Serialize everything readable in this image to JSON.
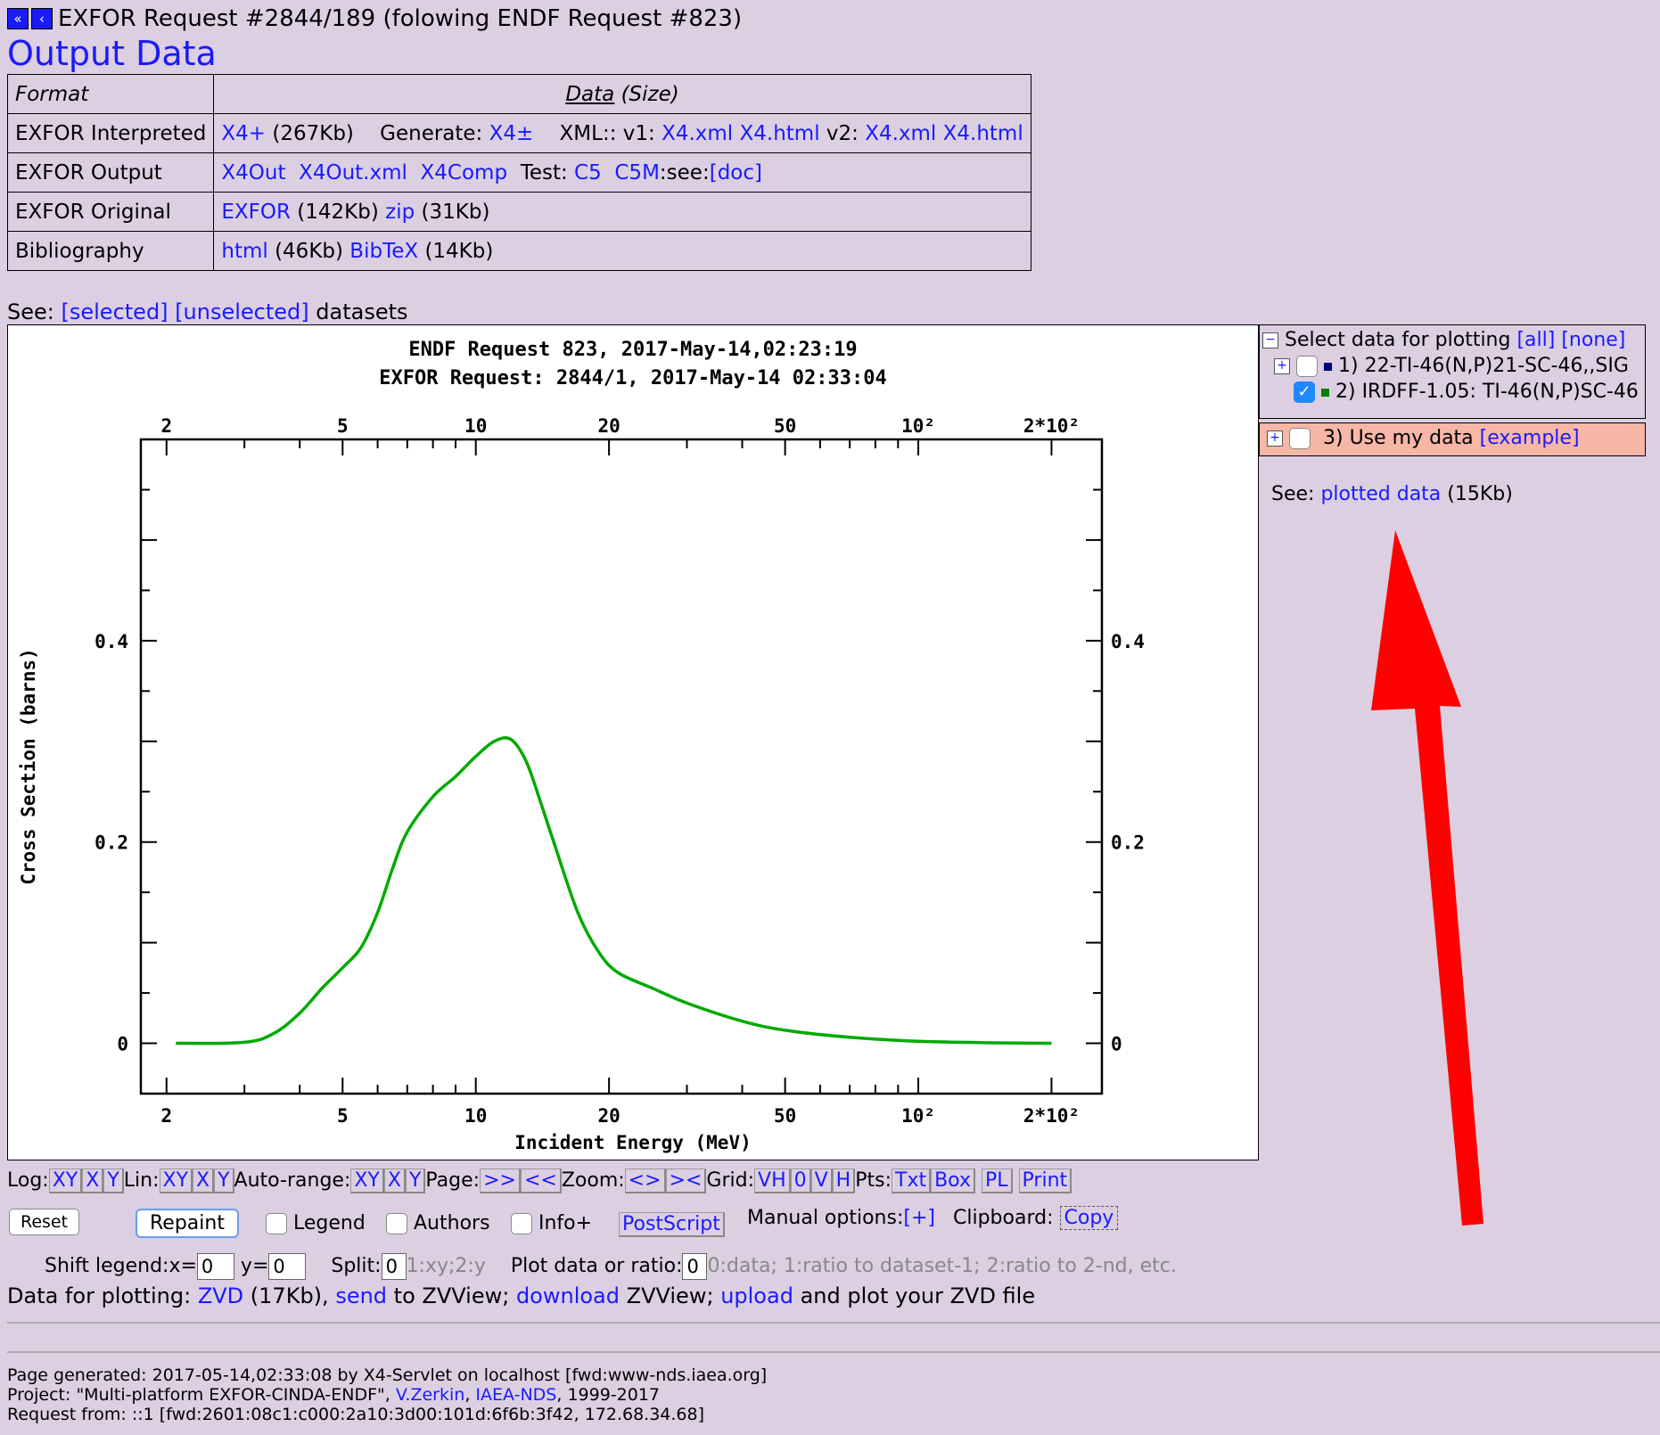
{
  "header": {
    "nav_icon_1": "double-left-arrow",
    "nav_icon_2": "left-arrow",
    "title": "EXFOR Request #2844/189 (folowing ENDF Request #823)"
  },
  "page_title": "Output Data",
  "table": {
    "col1_header": "Format",
    "col2_header_data": "Data",
    "col2_header_size": "(Size)",
    "rows": [
      {
        "label": "EXFOR Interpreted"
      },
      {
        "label": "EXFOR Output"
      },
      {
        "label": "EXFOR Original"
      },
      {
        "label": "Bibliography"
      }
    ],
    "interp": {
      "x4p": "X4+",
      "x4p_size": "(267Kb)",
      "generate": "Generate:",
      "x4pm": "X4±",
      "xml": "XML:: v1:",
      "x4xml1": "X4.xml",
      "x4html1": "X4.html",
      "v2": "v2:",
      "x4xml2": "X4.xml",
      "x4html2": "X4.html"
    },
    "output": {
      "x4out": "X4Out",
      "x4outxml": "X4Out.xml",
      "x4comp": "X4Comp",
      "test": "Test:",
      "c5": "C5",
      "c5m": "C5M",
      "see": ":see:",
      "doc": "[doc]"
    },
    "original": {
      "exfor": "EXFOR",
      "exfor_size": "(142Kb)",
      "zip": "zip",
      "zip_size": "(31Kb)"
    },
    "biblio": {
      "html": "html",
      "html_size": "(46Kb)",
      "bibtex": "BibTeX",
      "bibtex_size": "(14Kb)"
    }
  },
  "see_datasets": {
    "prefix": "See:",
    "selected": "[selected]",
    "unselected": "[unselected]",
    "suffix": "datasets"
  },
  "chart_data": {
    "type": "line",
    "title_lines": [
      "ENDF Request 823, 2017-May-14,02:23:19",
      "EXFOR Request: 2844/1, 2017-May-14 02:33:04"
    ],
    "xlabel": "Incident Energy (MeV)",
    "ylabel": "Cross Section (barns)",
    "x_scale": "log",
    "xlim": [
      1.75,
      260
    ],
    "ylim": [
      -0.05,
      0.6
    ],
    "x_tick_labels": [
      {
        "v": 2,
        "t": "2"
      },
      {
        "v": 5,
        "t": "5"
      },
      {
        "v": 10,
        "t": "10"
      },
      {
        "v": 20,
        "t": "20"
      },
      {
        "v": 50,
        "t": "50"
      },
      {
        "v": 100,
        "t": "10²"
      },
      {
        "v": 200,
        "t": "2*10²"
      }
    ],
    "y_tick_labels": [
      {
        "v": 0,
        "t": "0"
      },
      {
        "v": 0.2,
        "t": "0.2"
      },
      {
        "v": 0.4,
        "t": "0.4"
      }
    ],
    "series": [
      {
        "name": "IRDFF-1.05: TI-46(N,P)SC-46",
        "color": "#00aa00",
        "x": [
          2.1,
          3.0,
          3.5,
          4.0,
          4.5,
          5.0,
          5.5,
          6.0,
          6.5,
          7.0,
          8.0,
          9.0,
          10.0,
          11.0,
          12.0,
          13.0,
          14.0,
          15.0,
          17.0,
          19.0,
          21.0,
          25.0,
          30.0,
          40.0,
          50.0,
          70.0,
          100.0,
          150.0,
          200.0
        ],
        "y": [
          0.0,
          0.001,
          0.01,
          0.03,
          0.055,
          0.075,
          0.095,
          0.13,
          0.175,
          0.21,
          0.245,
          0.265,
          0.285,
          0.3,
          0.302,
          0.28,
          0.24,
          0.2,
          0.13,
          0.09,
          0.07,
          0.055,
          0.04,
          0.022,
          0.013,
          0.006,
          0.002,
          0.0005,
          0.0
        ]
      }
    ]
  },
  "sidebar": {
    "select_label": "Select data for plotting",
    "all": "[all]",
    "none": "[none]",
    "ds1": "1) 22-TI-46(N,P)21-SC-46,,SIG",
    "ds1_color": "#000080",
    "ds2": "2) IRDFF-1.05: TI-46(N,P)SC-46",
    "ds2_color": "#008000",
    "ds3": "3) Use my data",
    "example": "[example]",
    "see": "See:",
    "plotted": "plotted data",
    "plotted_size": "(15Kb)",
    "arrow_color": "#ff0000"
  },
  "controls": {
    "log_label": "Log:",
    "lin_label": "Lin:",
    "auto_label": "Auto-range:",
    "page_label": "Page:",
    "zoom_label": "Zoom:",
    "grid_label": "Grid:",
    "pts_label": "Pts:",
    "xy": "XY",
    "x": "X",
    "y": "Y",
    "next": ">>",
    "prev": "<<",
    "zin": "<>",
    "zout": "><",
    "vh": "VH",
    "g0": "0",
    "v": "V",
    "h": "H",
    "txt": "Txt",
    "box": "Box",
    "pl": "PL",
    "print": "Print",
    "reset": "Reset",
    "repaint": "Repaint",
    "legend": "Legend",
    "authors": "Authors",
    "info": "Info+",
    "postscript": "PostScript",
    "manual": "Manual options:",
    "manual_plus": "[+]",
    "clipboard": "Clipboard:",
    "copy": "Copy",
    "shift_legend": "Shift legend:x=",
    "shift_x": "0",
    "y_eq": "y=",
    "shift_y": "0",
    "split": "Split:",
    "split_val": "0",
    "split_hint": "1:xy;2:y",
    "ratio": "Plot data or ratio:",
    "ratio_val": "0",
    "ratio_hint": "0:data; 1:ratio to dataset-1; 2:ratio to 2-nd, etc."
  },
  "plotting_line": {
    "prefix": "Data for plotting:",
    "zvd": "ZVD",
    "zvd_size": "(17Kb),",
    "send": "send",
    "to_zv": "to ZVView;",
    "download": "download",
    "zv2": "ZVView;",
    "upload": "upload",
    "suffix": "and plot your ZVD file"
  },
  "footer": {
    "line1": "Page generated: 2017-05-14,02:33:08 by X4-Servlet on localhost [fwd:www-nds.iaea.org]",
    "line2a": "Project: \"Multi-platform EXFOR-CINDA-ENDF\",",
    "line2b": "V.Zerkin",
    "line2c": ",",
    "line2d": "IAEA-NDS",
    "line2e": ", 1999-2017",
    "line3": "Request from: ::1 [fwd:2601:08c1:c000:2a10:3d00:101d:6f6b:3f42, 172.68.34.68]"
  }
}
